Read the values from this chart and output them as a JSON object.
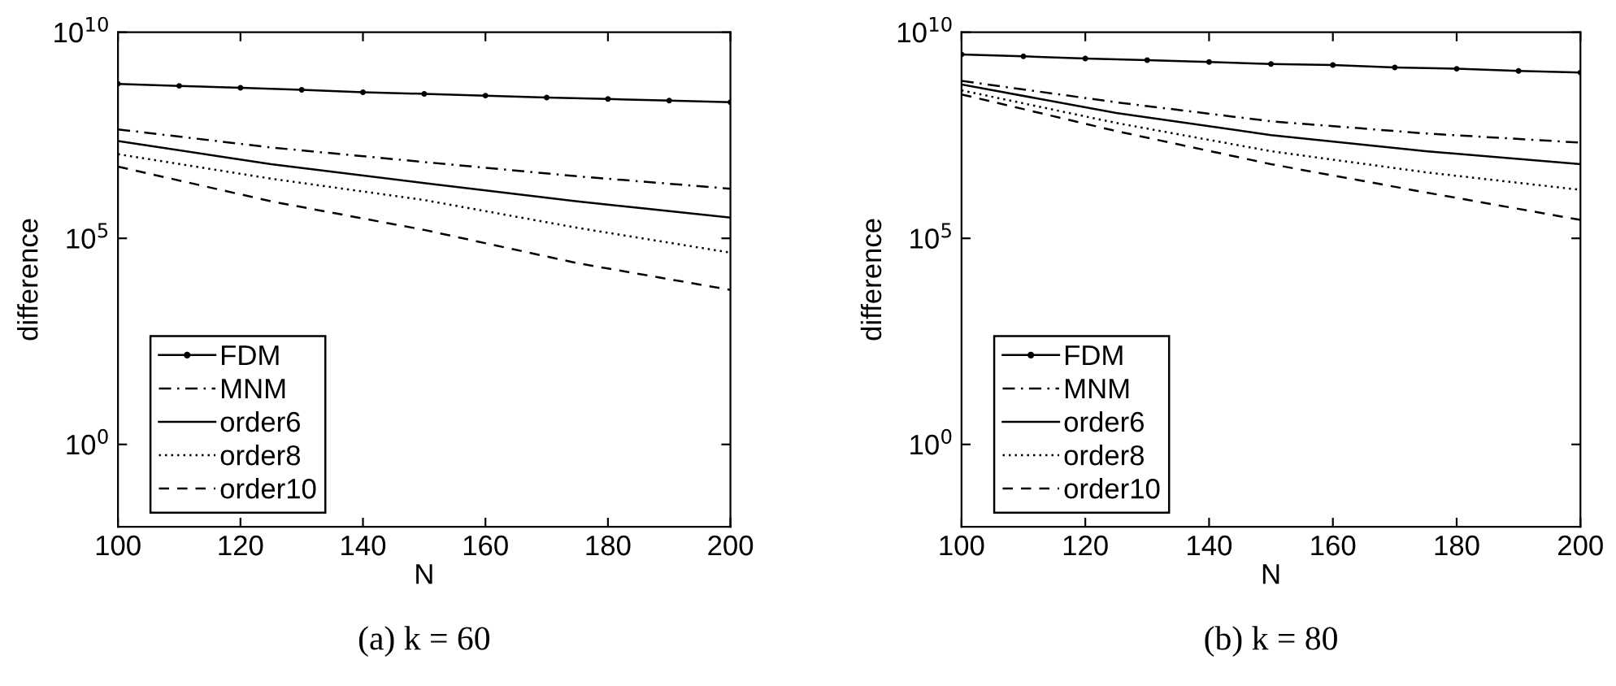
{
  "chart_data": [
    {
      "type": "line",
      "xlabel": "N",
      "ylabel": "difference",
      "annotations": [
        "(a) k = 60"
      ],
      "log": "y",
      "xlim": [
        100,
        200
      ],
      "xticks": [
        100,
        120,
        140,
        160,
        180,
        200
      ],
      "ylim": [
        0.01,
        10000000000.0
      ],
      "yticks": [
        {
          "value": 1,
          "label": "10$^{0}$"
        },
        {
          "value": 100000,
          "label": "10$^{5}$"
        },
        {
          "value": 10000000000,
          "label": "10$^{10}$"
        }
      ],
      "grid": false,
      "legend": "bottom left",
      "series": [
        {
          "name": "FDM",
          "color": "#000000",
          "marker": "circle",
          "line_style": "solid",
          "x": [
            100,
            110,
            120,
            130,
            140,
            150,
            160,
            170,
            180,
            190,
            200
          ],
          "values": [
            560000000.0,
            500000000.0,
            450000000.0,
            400000000.0,
            350000000.0,
            320000000.0,
            290000000.0,
            260000000.0,
            240000000.0,
            220000000.0,
            200000000.0
          ]
        },
        {
          "name": "MNM",
          "color": "#000000",
          "line_style": "dashdot",
          "x": [
            100,
            125,
            150,
            175,
            200
          ],
          "values": [
            44000000.0,
            16000000.0,
            7100000.0,
            3200000.0,
            1600000.0
          ]
        },
        {
          "name": "order6",
          "color": "#000000",
          "line_style": "solid",
          "x": [
            100,
            125,
            150,
            175,
            200
          ],
          "values": [
            23000000.0,
            6300000.0,
            2200000.0,
            790000.0,
            320000.0
          ]
        },
        {
          "name": "order8",
          "color": "#000000",
          "line_style": "dotted",
          "x": [
            100,
            125,
            150,
            175,
            200
          ],
          "values": [
            11000000.0,
            2800000.0,
            850000.0,
            180000.0,
            45000.0
          ]
        },
        {
          "name": "order10",
          "color": "#000000",
          "line_style": "dashed",
          "x": [
            100,
            125,
            150,
            175,
            200
          ],
          "values": [
            5500000.0,
            790000.0,
            160000.0,
            25000.0,
            5600.0
          ]
        }
      ]
    },
    {
      "type": "line",
      "xlabel": "N",
      "ylabel": "difference",
      "annotations": [
        "(b) k = 80"
      ],
      "log": "y",
      "xlim": [
        100,
        200
      ],
      "xticks": [
        100,
        120,
        140,
        160,
        180,
        200
      ],
      "ylim": [
        0.01,
        10000000000.0
      ],
      "yticks": [
        {
          "value": 1,
          "label": "10$^{0}$"
        },
        {
          "value": 100000,
          "label": "10$^{5}$"
        },
        {
          "value": 10000000000,
          "label": "10$^{10}$"
        }
      ],
      "grid": false,
      "legend": "bottom left",
      "series": [
        {
          "name": "FDM",
          "color": "#000000",
          "marker": "circle",
          "line_style": "solid",
          "x": [
            100,
            110,
            120,
            130,
            140,
            150,
            160,
            170,
            180,
            190,
            200
          ],
          "values": [
            2900000000.0,
            2600000000.0,
            2300000000.0,
            2100000000.0,
            1900000000.0,
            1700000000.0,
            1600000000.0,
            1400000000.0,
            1300000000.0,
            1150000000.0,
            1050000000.0
          ]
        },
        {
          "name": "MNM",
          "color": "#000000",
          "line_style": "dashdot",
          "x": [
            100,
            125,
            150,
            175,
            200
          ],
          "values": [
            660000000.0,
            200000000.0,
            69000000.0,
            35000000.0,
            21000000.0
          ]
        },
        {
          "name": "order6",
          "color": "#000000",
          "line_style": "solid",
          "x": [
            100,
            125,
            150,
            175,
            200
          ],
          "values": [
            540000000.0,
            110000000.0,
            32000000.0,
            13000000.0,
            6300000.0
          ]
        },
        {
          "name": "order8",
          "color": "#000000",
          "line_style": "dotted",
          "x": [
            100,
            125,
            150,
            175,
            200
          ],
          "values": [
            390000000.0,
            63000000.0,
            13000000.0,
            4000000.0,
            1500000.0
          ]
        },
        {
          "name": "order10",
          "color": "#000000",
          "line_style": "dashed",
          "x": [
            100,
            125,
            150,
            175,
            200
          ],
          "values": [
            310000000.0,
            40000000.0,
            6300000.0,
            1300000.0,
            280000.0
          ]
        }
      ]
    }
  ]
}
